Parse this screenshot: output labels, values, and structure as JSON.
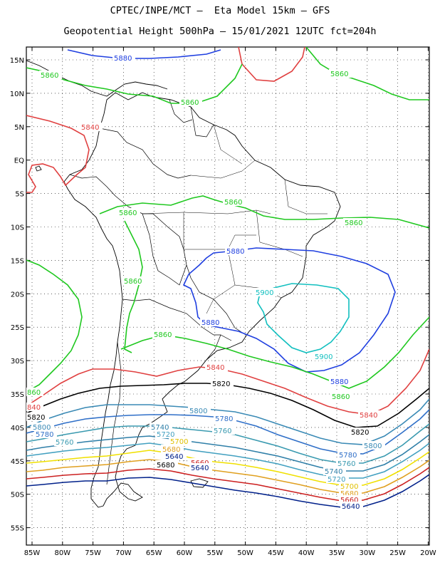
{
  "header": {
    "line1": "CPTEC/INPE/MCT –  Eta Model 15km – GFS",
    "line2": "Geopotential Height 500hPa – 15/01/2021 12UTC fct=204h"
  },
  "map": {
    "lat_labels": [
      "15N",
      "10N",
      "5N",
      "EQ",
      "5S",
      "10S",
      "15S",
      "20S",
      "25S",
      "30S",
      "35S",
      "40S",
      "45S",
      "50S",
      "55S"
    ],
    "lon_labels": [
      "85W",
      "80W",
      "75W",
      "70W",
      "65W",
      "60W",
      "55W",
      "50W",
      "45W",
      "40W",
      "35W",
      "30W",
      "25W",
      "20W"
    ],
    "grid": true,
    "coastline_color": "#000000"
  },
  "contours": [
    {
      "level": "5900",
      "color": "#11bfbf"
    },
    {
      "level": "5880",
      "color": "#1f3fe0"
    },
    {
      "level": "5860",
      "color": "#1fc81f"
    },
    {
      "level": "5840",
      "color": "#e04040"
    },
    {
      "level": "5820",
      "color": "#000000"
    },
    {
      "level": "5800",
      "color": "#3a8ab5"
    },
    {
      "level": "5780",
      "color": "#2f6fc8"
    },
    {
      "level": "5760",
      "color": "#3a9ab0"
    },
    {
      "level": "5740",
      "color": "#2f7fa8"
    },
    {
      "level": "5720",
      "color": "#42a0c0"
    },
    {
      "level": "5700",
      "color": "#f0e000"
    },
    {
      "level": "5680",
      "color": "#e0a020"
    },
    {
      "level": "5660",
      "color": "#cc2020"
    },
    {
      "level": "5640",
      "color": "#00208a"
    }
  ]
}
